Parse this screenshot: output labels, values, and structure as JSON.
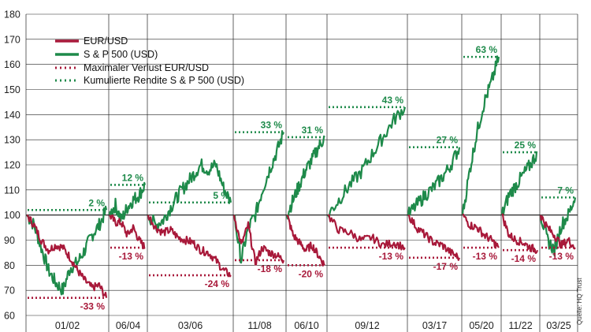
{
  "chart_data": {
    "type": "line",
    "ylim": [
      60,
      180
    ],
    "yticks": [
      60,
      70,
      80,
      90,
      100,
      110,
      120,
      130,
      140,
      150,
      160,
      170,
      180
    ],
    "grid": true,
    "baseline": 100,
    "legend_placement": "top-left",
    "legend": [
      {
        "key": "eur",
        "label": "EUR/USD",
        "style": "solid"
      },
      {
        "key": "sp",
        "label": "S & P 500 (USD)",
        "style": "solid"
      },
      {
        "key": "eur_loss",
        "label": "Maximaler Verlust EUR/USD",
        "style": "dotted"
      },
      {
        "key": "sp_ret",
        "label": "Kumulierte Rendite S & P 500 (USD)",
        "style": "dotted"
      }
    ],
    "colors": {
      "eur": "#a8193a",
      "sp": "#1e8a4a",
      "grid": "#222222",
      "baseline": "#111111"
    },
    "source": "Quelle: HQ Trust",
    "periods": [
      {
        "label": "01/02",
        "sp_return_label": "2 %",
        "sp_return": 102,
        "eur_loss_label": "-33 %",
        "eur_loss": 67,
        "eur": [
          100,
          96,
          90,
          86,
          88,
          87,
          83,
          78,
          74,
          71,
          72,
          67
        ],
        "sp": [
          100,
          96,
          87,
          78,
          73,
          70,
          79,
          81,
          86,
          92,
          96,
          102
        ]
      },
      {
        "label": "06/04",
        "sp_return_label": "12 %",
        "sp_return": 112,
        "eur_loss_label": "-13 %",
        "eur_loss": 87,
        "eur": [
          100,
          97,
          97,
          92,
          95,
          90,
          87
        ],
        "sp": [
          100,
          104,
          98,
          103,
          106,
          108,
          112
        ]
      },
      {
        "label": "03/06",
        "sp_return_label": "5 %",
        "sp_return": 105,
        "eur_loss_label": "-24 %",
        "eur_loss": 76,
        "eur": [
          100,
          95,
          93,
          94,
          91,
          90,
          89,
          86,
          85,
          82,
          78,
          76
        ],
        "sp": [
          100,
          96,
          98,
          103,
          108,
          112,
          116,
          120,
          118,
          120,
          111,
          105
        ]
      },
      {
        "label": "11/08",
        "sp_return_label": "33 %",
        "sp_return": 133,
        "eur_loss_label": "-18 %",
        "eur_loss": 82,
        "eur": [
          100,
          88,
          96,
          81,
          87,
          85,
          84,
          82
        ],
        "sp": [
          100,
          82,
          95,
          100,
          110,
          118,
          125,
          133
        ]
      },
      {
        "label": "06/10",
        "sp_return_label": "31 %",
        "sp_return": 131,
        "eur_loss_label": "-20 %",
        "eur_loss": 80,
        "eur": [
          100,
          92,
          89,
          86,
          88,
          84,
          80
        ],
        "sp": [
          100,
          106,
          112,
          118,
          122,
          127,
          131
        ]
      },
      {
        "label": "09/12",
        "sp_return_label": "43 %",
        "sp_return": 143,
        "eur_loss_label": "-13 %",
        "eur_loss": 87,
        "eur": [
          100,
          94,
          93,
          90,
          91,
          88,
          89,
          87
        ],
        "sp": [
          100,
          106,
          112,
          117,
          124,
          131,
          138,
          143
        ]
      },
      {
        "label": "03/17",
        "sp_return_label": "27 %",
        "sp_return": 127,
        "eur_loss_label": "-17 %",
        "eur_loss": 83,
        "eur": [
          100,
          95,
          92,
          89,
          88,
          85,
          83
        ],
        "sp": [
          100,
          104,
          108,
          111,
          115,
          120,
          127
        ]
      },
      {
        "label": "05/20",
        "sp_return_label": "63 %",
        "sp_return": 163,
        "eur_loss_label": "-13 %",
        "eur_loss": 87,
        "eur": [
          100,
          96,
          95,
          92,
          90,
          87
        ],
        "sp": [
          100,
          118,
          133,
          145,
          153,
          163
        ]
      },
      {
        "label": "11/22",
        "sp_return_label": "25 %",
        "sp_return": 125,
        "eur_loss_label": "-14 %",
        "eur_loss": 86,
        "eur": [
          100,
          92,
          90,
          89,
          87,
          86
        ],
        "sp": [
          100,
          108,
          112,
          116,
          120,
          125
        ]
      },
      {
        "label": "03/25",
        "sp_return_label": "7 %",
        "sp_return": 107,
        "eur_loss_label": "-13 %",
        "eur_loss": 87,
        "eur": [
          100,
          95,
          92,
          88,
          90,
          87
        ],
        "sp": [
          100,
          90,
          86,
          96,
          100,
          107
        ]
      }
    ]
  }
}
